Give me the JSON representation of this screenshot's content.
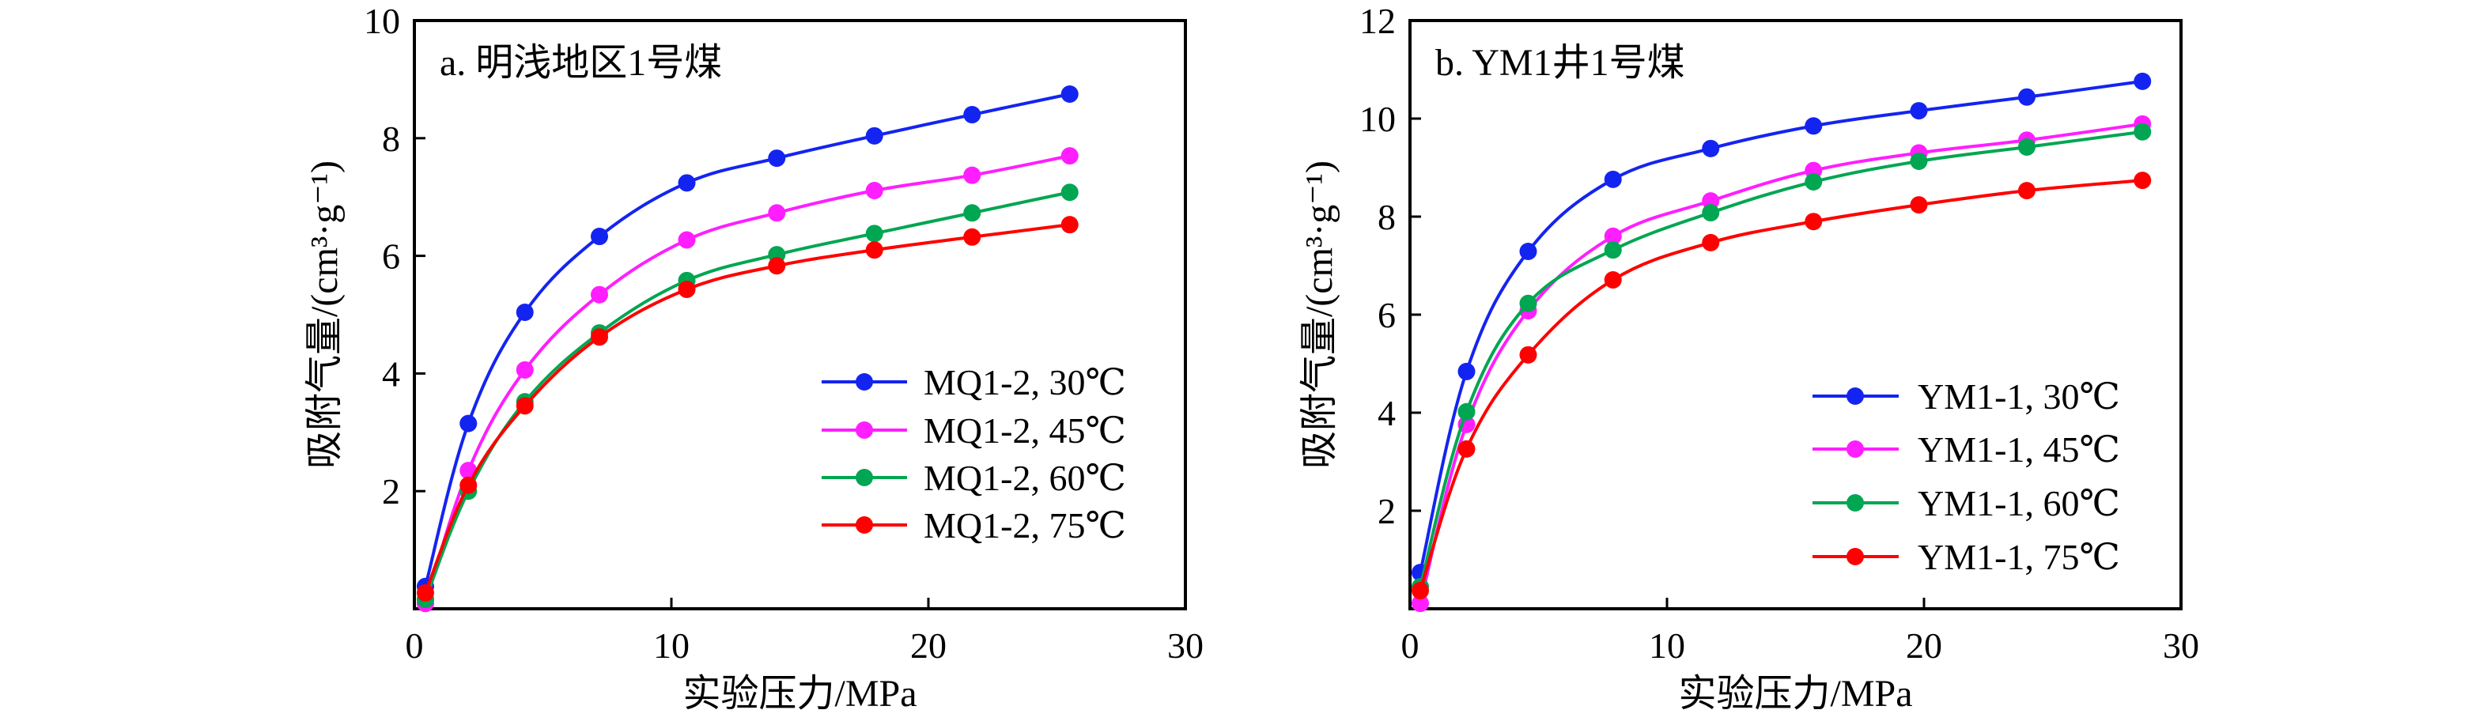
{
  "chart_data": [
    {
      "type": "line",
      "panel_title": "a. 明浅地区1号煤",
      "xlabel": "实验压力/MPa",
      "ylabel": "吸附气量/(cm³·g⁻¹)",
      "xlim": [
        0,
        30
      ],
      "ylim": [
        0,
        10
      ],
      "xticks": [
        0,
        10,
        20,
        30
      ],
      "yticks": [
        2,
        4,
        6,
        8,
        10
      ],
      "ytick_labels": [
        "2",
        "4",
        "6",
        "8",
        "10"
      ],
      "xtick_labels": [
        "0",
        "10",
        "20",
        "30"
      ],
      "x_zero_label": "0",
      "grid": false,
      "legend_position": "center-right",
      "x": [
        0.43,
        2.1,
        4.3,
        7.2,
        10.6,
        14.1,
        17.9,
        21.7,
        25.5
      ],
      "series": [
        {
          "name": "MQ1-2, 30℃",
          "color": "#1424F0",
          "values": [
            0.38,
            3.15,
            5.04,
            6.33,
            7.24,
            7.66,
            8.04,
            8.4,
            8.75
          ]
        },
        {
          "name": "MQ1-2, 45℃",
          "color": "#FF1EFF",
          "values": [
            0.09,
            2.35,
            4.06,
            5.34,
            6.27,
            6.73,
            7.11,
            7.37,
            7.7
          ]
        },
        {
          "name": "MQ1-2, 60℃",
          "color": "#00A651",
          "values": [
            0.16,
            2.0,
            3.52,
            4.69,
            5.58,
            6.02,
            6.38,
            6.73,
            7.08
          ]
        },
        {
          "name": "MQ1-2, 75℃",
          "color": "#FF0000",
          "values": [
            0.27,
            2.1,
            3.45,
            4.62,
            5.43,
            5.83,
            6.1,
            6.32,
            6.53
          ]
        }
      ]
    },
    {
      "type": "line",
      "panel_title": "b. YM1井1号煤",
      "xlabel": "实验压力/MPa",
      "ylabel": "吸附气量/(cm³·g⁻¹)",
      "xlim": [
        0,
        30
      ],
      "ylim": [
        0,
        12
      ],
      "xticks": [
        0,
        10,
        20,
        30
      ],
      "yticks": [
        2,
        4,
        6,
        8,
        10,
        12
      ],
      "ytick_labels": [
        "2",
        "4",
        "6",
        "8",
        "10",
        "12"
      ],
      "xtick_labels": [
        "0",
        "10",
        "20",
        "30"
      ],
      "grid": false,
      "legend_position": "lower-right",
      "x": [
        0.4,
        2.2,
        4.6,
        7.9,
        11.7,
        15.7,
        19.8,
        24.0,
        28.5
      ],
      "series": [
        {
          "name": "YM1-1, 30℃",
          "color": "#1424F0",
          "values": [
            0.74,
            4.84,
            7.29,
            8.76,
            9.39,
            9.85,
            10.16,
            10.44,
            10.76
          ]
        },
        {
          "name": "YM1-1, 45℃",
          "color": "#FF1EFF",
          "values": [
            0.11,
            3.76,
            6.08,
            7.6,
            8.32,
            8.94,
            9.3,
            9.56,
            9.89
          ]
        },
        {
          "name": "YM1-1, 60℃",
          "color": "#00A651",
          "values": [
            0.45,
            4.02,
            6.23,
            7.32,
            8.08,
            8.71,
            9.13,
            9.42,
            9.73
          ]
        },
        {
          "name": "YM1-1, 75℃",
          "color": "#FF0000",
          "values": [
            0.37,
            3.26,
            5.18,
            6.71,
            7.47,
            7.9,
            8.24,
            8.53,
            8.74
          ]
        }
      ]
    }
  ]
}
